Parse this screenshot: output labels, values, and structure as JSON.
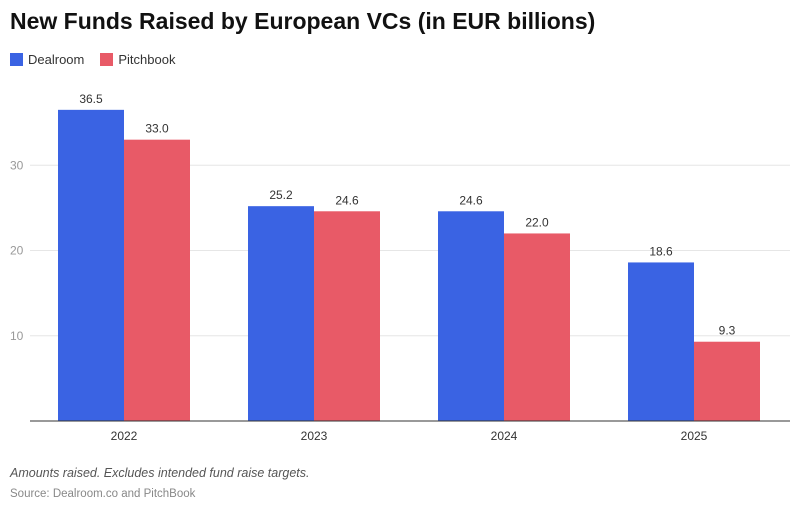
{
  "chart_data": {
    "type": "bar",
    "title": "New Funds Raised by European VCs (in EUR billions)",
    "categories": [
      "2022",
      "2023",
      "2024",
      "2025"
    ],
    "series": [
      {
        "name": "Dealroom",
        "color": "#3a63e3",
        "values": [
          36.5,
          25.2,
          24.6,
          18.6
        ],
        "labels": [
          "36.5",
          "25.2",
          "24.6",
          "18.6"
        ]
      },
      {
        "name": "Pitchbook",
        "color": "#e85a67",
        "values": [
          33.0,
          24.6,
          22.0,
          9.3
        ],
        "labels": [
          "33.0",
          "24.6",
          "22.0",
          "9.3"
        ]
      }
    ],
    "yticks": [
      10,
      20,
      30
    ],
    "ylim": [
      0,
      40
    ],
    "xlabel": "",
    "ylabel": "",
    "grid": true,
    "legend": "top-left"
  },
  "footer": {
    "note": "Amounts raised. Excludes intended fund raise targets.",
    "source": "Source: Dealroom.co and PitchBook"
  },
  "colors": {
    "grid": "#e6e6e6",
    "axis": "#333333",
    "tick_text": "#999999",
    "label_text": "#333333"
  }
}
